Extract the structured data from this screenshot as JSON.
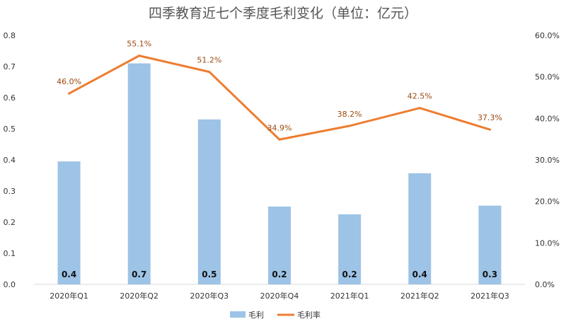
{
  "chart_data": {
    "type": "bar",
    "title": "四季教育近七个季度毛利变化（单位：亿元）",
    "categories": [
      "2020年Q1",
      "2020年Q2",
      "2020年Q3",
      "2020年Q4",
      "2021年Q1",
      "2021年Q2",
      "2021年Q3"
    ],
    "series": [
      {
        "name": "毛利",
        "type": "bar",
        "axis": "left",
        "color": "#9dc3e6",
        "values": [
          0.395,
          0.71,
          0.53,
          0.25,
          0.225,
          0.357,
          0.253
        ],
        "labels": [
          "0.4",
          "0.7",
          "0.5",
          "0.2",
          "0.2",
          "0.4",
          "0.3"
        ]
      },
      {
        "name": "毛利率",
        "type": "line",
        "axis": "right",
        "color": "#ed7d31",
        "values": [
          46.0,
          55.1,
          51.2,
          34.9,
          38.2,
          42.5,
          37.3
        ],
        "labels": [
          "46.0%",
          "55.1%",
          "51.2%",
          "34.9%",
          "38.2%",
          "42.5%",
          "37.3%"
        ]
      }
    ],
    "ylim": [
      0,
      0.8
    ],
    "y_ticks": [
      "0.0",
      "0.1",
      "0.2",
      "0.3",
      "0.4",
      "0.5",
      "0.6",
      "0.7",
      "0.8"
    ],
    "y2lim": [
      0,
      60
    ],
    "y2_ticks": [
      "0.0%",
      "10.0%",
      "20.0%",
      "30.0%",
      "40.0%",
      "50.0%",
      "60.0%"
    ],
    "grid": false,
    "legend": "bottom"
  }
}
